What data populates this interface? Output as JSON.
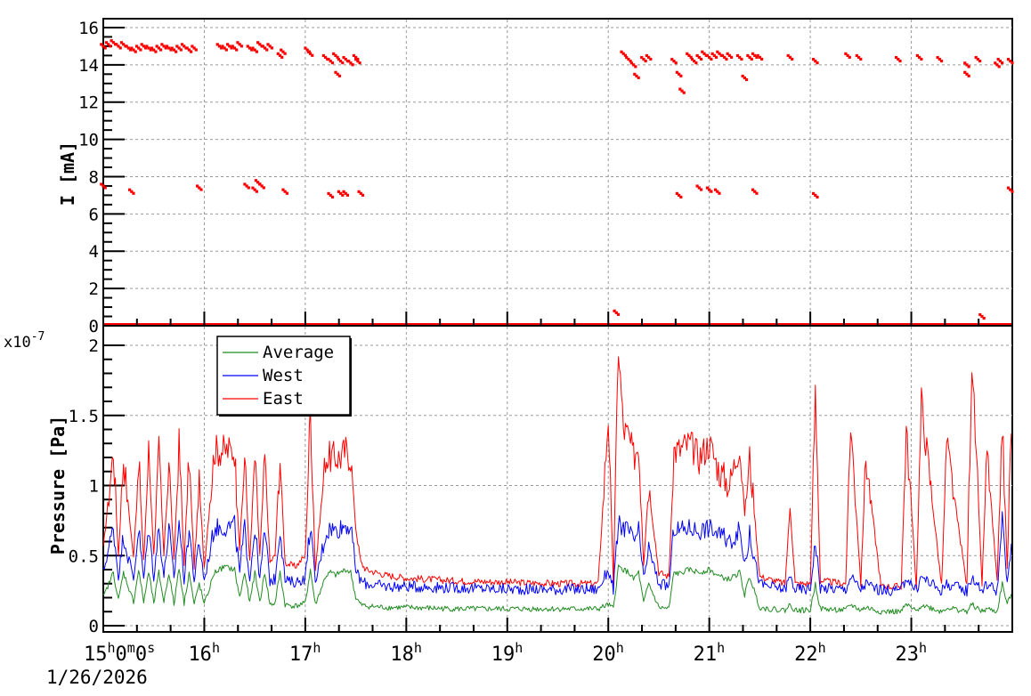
{
  "chart_data": [
    {
      "type": "scatter",
      "panel": "top",
      "title": "",
      "xlabel": "",
      "ylabel": "I [mA]",
      "ylim": [
        0,
        16.5
      ],
      "yticks": [
        0,
        2,
        4,
        6,
        8,
        10,
        12,
        14,
        16
      ],
      "grid": true,
      "series": [
        {
          "name": "I",
          "color": "#ff0000",
          "points_hours": [
            [
              15.0,
              15.0
            ],
            [
              15.05,
              15.1
            ],
            [
              15.1,
              15.2
            ],
            [
              15.15,
              15.0
            ],
            [
              15.2,
              15.1
            ],
            [
              15.25,
              14.9
            ],
            [
              15.3,
              14.8
            ],
            [
              15.35,
              14.9
            ],
            [
              15.4,
              15.0
            ],
            [
              15.45,
              14.9
            ],
            [
              15.5,
              14.8
            ],
            [
              15.55,
              14.9
            ],
            [
              15.6,
              15.0
            ],
            [
              15.65,
              14.9
            ],
            [
              15.7,
              14.8
            ],
            [
              15.75,
              14.9
            ],
            [
              15.8,
              15.0
            ],
            [
              15.85,
              14.8
            ],
            [
              15.9,
              14.9
            ],
            [
              16.15,
              15.0
            ],
            [
              16.2,
              14.9
            ],
            [
              16.25,
              15.0
            ],
            [
              16.3,
              14.9
            ],
            [
              16.35,
              15.1
            ],
            [
              16.45,
              14.9
            ],
            [
              16.5,
              14.8
            ],
            [
              16.55,
              15.1
            ],
            [
              16.6,
              14.9
            ],
            [
              16.65,
              15.0
            ],
            [
              16.75,
              14.5
            ],
            [
              16.78,
              14.7
            ],
            [
              17.02,
              14.8
            ],
            [
              17.05,
              14.6
            ],
            [
              17.2,
              14.4
            ],
            [
              17.25,
              14.2
            ],
            [
              17.3,
              14.5
            ],
            [
              17.32,
              13.5
            ],
            [
              17.35,
              14.2
            ],
            [
              17.4,
              14.3
            ],
            [
              17.45,
              14.1
            ],
            [
              17.5,
              14.4
            ],
            [
              17.52,
              14.2
            ],
            [
              20.15,
              14.6
            ],
            [
              20.2,
              14.3
            ],
            [
              20.25,
              14.0
            ],
            [
              20.28,
              13.4
            ],
            [
              20.35,
              14.3
            ],
            [
              20.4,
              14.4
            ],
            [
              20.65,
              14.2
            ],
            [
              20.7,
              13.5
            ],
            [
              20.73,
              12.6
            ],
            [
              20.8,
              14.5
            ],
            [
              20.85,
              14.2
            ],
            [
              20.9,
              14.4
            ],
            [
              20.95,
              14.6
            ],
            [
              21.0,
              14.4
            ],
            [
              21.05,
              14.5
            ],
            [
              21.1,
              14.6
            ],
            [
              21.15,
              14.4
            ],
            [
              21.2,
              14.5
            ],
            [
              21.3,
              14.4
            ],
            [
              21.35,
              13.3
            ],
            [
              21.4,
              14.4
            ],
            [
              21.45,
              14.5
            ],
            [
              21.5,
              14.4
            ],
            [
              21.8,
              14.4
            ],
            [
              22.05,
              14.2
            ],
            [
              22.37,
              14.5
            ],
            [
              22.48,
              14.4
            ],
            [
              22.87,
              14.3
            ],
            [
              23.08,
              14.4
            ],
            [
              23.28,
              14.3
            ],
            [
              23.55,
              14.0
            ],
            [
              23.55,
              13.5
            ],
            [
              23.66,
              14.3
            ],
            [
              23.85,
              14.0
            ],
            [
              23.88,
              14.2
            ],
            [
              23.98,
              14.2
            ],
            [
              15.0,
              7.5
            ],
            [
              15.28,
              7.2
            ],
            [
              15.95,
              7.4
            ],
            [
              16.42,
              7.5
            ],
            [
              16.5,
              7.3
            ],
            [
              16.53,
              7.7
            ],
            [
              16.57,
              7.5
            ],
            [
              16.8,
              7.2
            ],
            [
              17.25,
              7.0
            ],
            [
              17.35,
              7.1
            ],
            [
              17.4,
              7.1
            ],
            [
              17.55,
              7.1
            ],
            [
              20.7,
              7.0
            ],
            [
              20.9,
              7.4
            ],
            [
              21.0,
              7.3
            ],
            [
              21.08,
              7.2
            ],
            [
              21.45,
              7.2
            ],
            [
              22.05,
              7.0
            ],
            [
              23.98,
              7.3
            ],
            [
              20.08,
              0.7
            ],
            [
              23.7,
              0.5
            ]
          ],
          "baseline_zero": true
        }
      ]
    },
    {
      "type": "line",
      "panel": "bottom",
      "title": "",
      "xlabel": "",
      "ylabel": "Pressure [Pa]",
      "yscale_label": "x10^-7",
      "ylim": [
        0,
        2.05
      ],
      "yticks": [
        0,
        0.5,
        1,
        1.5,
        2
      ],
      "ytick_labels": [
        "0",
        "0.5",
        "1",
        "1.5",
        "2"
      ],
      "grid": true,
      "legend": {
        "position": "upper-left",
        "entries": [
          {
            "name": "Average",
            "color": "#228b22"
          },
          {
            "name": "West",
            "color": "#0000ff"
          },
          {
            "name": "East",
            "color": "#ff0000"
          }
        ]
      },
      "x_hours": [
        15.0,
        15.1,
        15.15,
        15.2,
        15.3,
        15.35,
        15.4,
        15.45,
        15.5,
        15.55,
        15.6,
        15.65,
        15.7,
        15.75,
        15.8,
        15.85,
        15.9,
        15.95,
        16.0,
        16.1,
        16.15,
        16.2,
        16.3,
        16.35,
        16.4,
        16.45,
        16.5,
        16.55,
        16.6,
        16.65,
        16.7,
        16.75,
        16.8,
        16.9,
        17.0,
        17.05,
        17.1,
        17.2,
        17.25,
        17.3,
        17.35,
        17.4,
        17.45,
        17.5,
        17.55,
        17.6,
        17.8,
        18.0,
        18.5,
        19.0,
        19.5,
        19.9,
        20.0,
        20.05,
        20.1,
        20.15,
        20.2,
        20.25,
        20.3,
        20.35,
        20.4,
        20.5,
        20.6,
        20.65,
        20.7,
        20.8,
        20.9,
        21.0,
        21.1,
        21.2,
        21.3,
        21.35,
        21.4,
        21.5,
        21.6,
        21.75,
        21.8,
        21.85,
        22.0,
        22.05,
        22.1,
        22.35,
        22.4,
        22.5,
        22.55,
        22.7,
        22.9,
        22.95,
        23.05,
        23.1,
        23.3,
        23.35,
        23.55,
        23.6,
        23.7,
        23.75,
        23.85,
        23.9,
        23.95,
        24.0
      ],
      "series": [
        {
          "name": "East",
          "color": "#ff0000",
          "values": [
            0.55,
            1.25,
            0.5,
            1.2,
            0.48,
            1.2,
            0.45,
            1.25,
            0.5,
            1.25,
            0.5,
            1.2,
            0.45,
            1.3,
            0.45,
            1.2,
            0.42,
            1.0,
            0.42,
            1.25,
            1.25,
            1.25,
            1.25,
            0.55,
            1.2,
            0.45,
            1.2,
            0.5,
            1.2,
            0.45,
            0.5,
            1.2,
            0.45,
            0.42,
            0.5,
            1.55,
            0.4,
            1.2,
            1.2,
            1.2,
            1.2,
            1.25,
            1.2,
            0.7,
            0.45,
            0.4,
            0.36,
            0.34,
            0.32,
            0.31,
            0.3,
            0.3,
            1.5,
            0.3,
            2.0,
            1.4,
            1.35,
            1.2,
            1.3,
            0.45,
            1.0,
            0.38,
            0.35,
            1.25,
            1.25,
            1.3,
            1.2,
            1.3,
            1.1,
            1.0,
            1.3,
            0.8,
            1.2,
            0.35,
            0.33,
            0.3,
            0.85,
            0.3,
            0.3,
            1.65,
            0.32,
            0.3,
            1.45,
            0.3,
            1.2,
            0.28,
            0.28,
            1.4,
            0.28,
            1.6,
            0.28,
            1.3,
            0.28,
            1.9,
            0.3,
            1.25,
            0.3,
            1.45,
            0.4,
            1.7
          ]
        },
        {
          "name": "West",
          "color": "#0000ff",
          "values": [
            0.38,
            0.7,
            0.35,
            0.65,
            0.33,
            0.7,
            0.33,
            0.7,
            0.35,
            0.7,
            0.35,
            0.7,
            0.33,
            0.75,
            0.33,
            0.7,
            0.32,
            0.6,
            0.32,
            0.7,
            0.7,
            0.7,
            0.72,
            0.38,
            0.7,
            0.33,
            0.7,
            0.33,
            0.68,
            0.32,
            0.33,
            0.7,
            0.32,
            0.31,
            0.34,
            0.72,
            0.3,
            0.65,
            0.7,
            0.68,
            0.7,
            0.72,
            0.7,
            0.4,
            0.32,
            0.3,
            0.28,
            0.28,
            0.27,
            0.26,
            0.26,
            0.26,
            0.4,
            0.26,
            0.72,
            0.7,
            0.68,
            0.6,
            0.68,
            0.33,
            0.55,
            0.3,
            0.28,
            0.7,
            0.68,
            0.7,
            0.68,
            0.7,
            0.65,
            0.6,
            0.68,
            0.45,
            0.65,
            0.3,
            0.28,
            0.26,
            0.35,
            0.26,
            0.26,
            0.6,
            0.27,
            0.26,
            0.35,
            0.26,
            0.3,
            0.25,
            0.25,
            0.35,
            0.25,
            0.35,
            0.25,
            0.3,
            0.25,
            0.35,
            0.25,
            0.3,
            0.25,
            0.75,
            0.3,
            0.6
          ]
        },
        {
          "name": "Average",
          "color": "#228b22",
          "values": [
            0.2,
            0.38,
            0.18,
            0.38,
            0.17,
            0.4,
            0.17,
            0.38,
            0.16,
            0.38,
            0.17,
            0.38,
            0.15,
            0.42,
            0.16,
            0.38,
            0.15,
            0.3,
            0.15,
            0.38,
            0.4,
            0.42,
            0.4,
            0.2,
            0.38,
            0.16,
            0.38,
            0.17,
            0.38,
            0.15,
            0.16,
            0.38,
            0.15,
            0.14,
            0.16,
            0.4,
            0.15,
            0.35,
            0.38,
            0.36,
            0.38,
            0.4,
            0.38,
            0.2,
            0.15,
            0.14,
            0.13,
            0.13,
            0.12,
            0.12,
            0.12,
            0.12,
            0.15,
            0.12,
            0.42,
            0.4,
            0.38,
            0.33,
            0.38,
            0.16,
            0.3,
            0.13,
            0.12,
            0.38,
            0.37,
            0.4,
            0.38,
            0.4,
            0.35,
            0.33,
            0.38,
            0.22,
            0.35,
            0.13,
            0.12,
            0.11,
            0.15,
            0.11,
            0.11,
            0.3,
            0.12,
            0.11,
            0.15,
            0.11,
            0.13,
            0.1,
            0.1,
            0.15,
            0.1,
            0.15,
            0.1,
            0.13,
            0.1,
            0.15,
            0.1,
            0.12,
            0.1,
            0.3,
            0.15,
            0.25
          ]
        }
      ]
    }
  ],
  "x_axis": {
    "start_hour": 15,
    "end_hour": 24,
    "ticks": [
      {
        "hour": 15,
        "main": "15",
        "sup": "h",
        "main2": "0",
        "sup2": "m",
        "main3": "0",
        "sup3": "s"
      },
      {
        "hour": 16,
        "main": "16",
        "sup": "h"
      },
      {
        "hour": 17,
        "main": "17",
        "sup": "h"
      },
      {
        "hour": 18,
        "main": "18",
        "sup": "h"
      },
      {
        "hour": 19,
        "main": "19",
        "sup": "h"
      },
      {
        "hour": 20,
        "main": "20",
        "sup": "h"
      },
      {
        "hour": 21,
        "main": "21",
        "sup": "h"
      },
      {
        "hour": 22,
        "main": "22",
        "sup": "h"
      },
      {
        "hour": 23,
        "main": "23",
        "sup": "h"
      }
    ],
    "date_label": "1/26/2026"
  },
  "labels": {
    "top_ylabel": "I [mA]",
    "bottom_ylabel": "Pressure [Pa]",
    "scale_base": "x10",
    "scale_exp": "-7",
    "legend": [
      "Average",
      "West",
      "East"
    ]
  }
}
